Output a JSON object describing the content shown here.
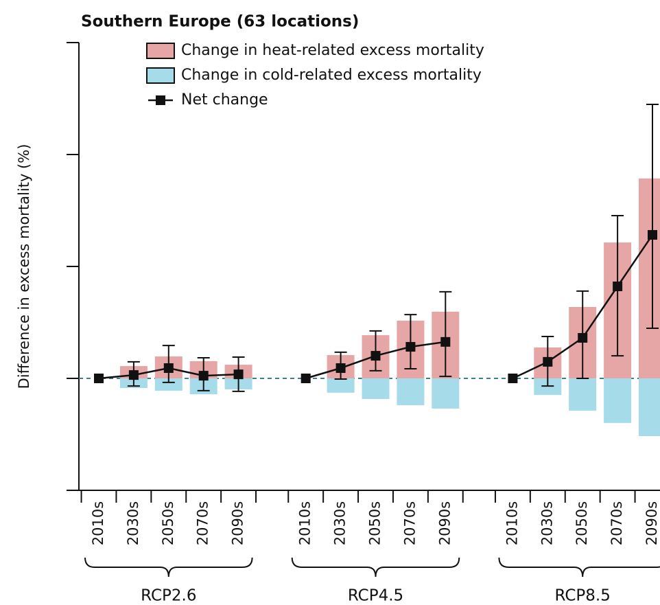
{
  "chart_data": {
    "type": "grouped-bar-line",
    "title": "Southern Europe (63 locations)",
    "y_label": "Difference in excess mortality (%)",
    "ylim": [
      -5,
      15
    ],
    "yticks": [
      -5,
      0,
      5,
      10,
      15
    ],
    "series": [
      {
        "name": "Change in heat-related excess mortality",
        "color": "#e6a6a6"
      },
      {
        "name": "Change in cold-related excess mortality",
        "color": "#a6dbea"
      },
      {
        "name": "Net change",
        "color": "#111111"
      }
    ],
    "groups": [
      {
        "label": "RCP2.6",
        "categories": [
          "2010s",
          "2030s",
          "2050s",
          "2070s",
          "2090s"
        ],
        "heat": [
          0,
          0.55,
          0.98,
          0.77,
          0.61
        ],
        "cold": [
          0,
          -0.43,
          -0.55,
          -0.71,
          -0.49
        ],
        "net": [
          0,
          0.15,
          0.46,
          0.12,
          0.18
        ],
        "net_low": [
          null,
          -0.34,
          -0.18,
          -0.55,
          -0.58
        ],
        "net_high": [
          null,
          0.74,
          1.47,
          0.92,
          0.95
        ]
      },
      {
        "label": "RCP4.5",
        "categories": [
          "2010s",
          "2030s",
          "2050s",
          "2070s",
          "2090s"
        ],
        "heat": [
          0,
          1.04,
          1.93,
          2.58,
          2.98
        ],
        "cold": [
          0,
          -0.64,
          -0.92,
          -1.2,
          -1.35
        ],
        "net": [
          0,
          0.46,
          1.01,
          1.41,
          1.63
        ],
        "net_low": [
          null,
          -0.03,
          0.34,
          0.43,
          0.09
        ],
        "net_high": [
          null,
          1.17,
          2.12,
          2.85,
          3.87
        ]
      },
      {
        "label": "RCP8.5",
        "categories": [
          "2010s",
          "2030s",
          "2050s",
          "2070s",
          "2090s"
        ],
        "heat": [
          0,
          1.38,
          3.19,
          6.07,
          8.93
        ],
        "cold": [
          0,
          -0.74,
          -1.44,
          -1.99,
          -2.58
        ],
        "net": [
          0,
          0.74,
          1.81,
          4.11,
          6.41
        ],
        "net_low": [
          null,
          -0.34,
          0,
          1.01,
          2.24
        ],
        "net_high": [
          null,
          1.87,
          3.9,
          7.27,
          12.24
        ]
      }
    ]
  }
}
